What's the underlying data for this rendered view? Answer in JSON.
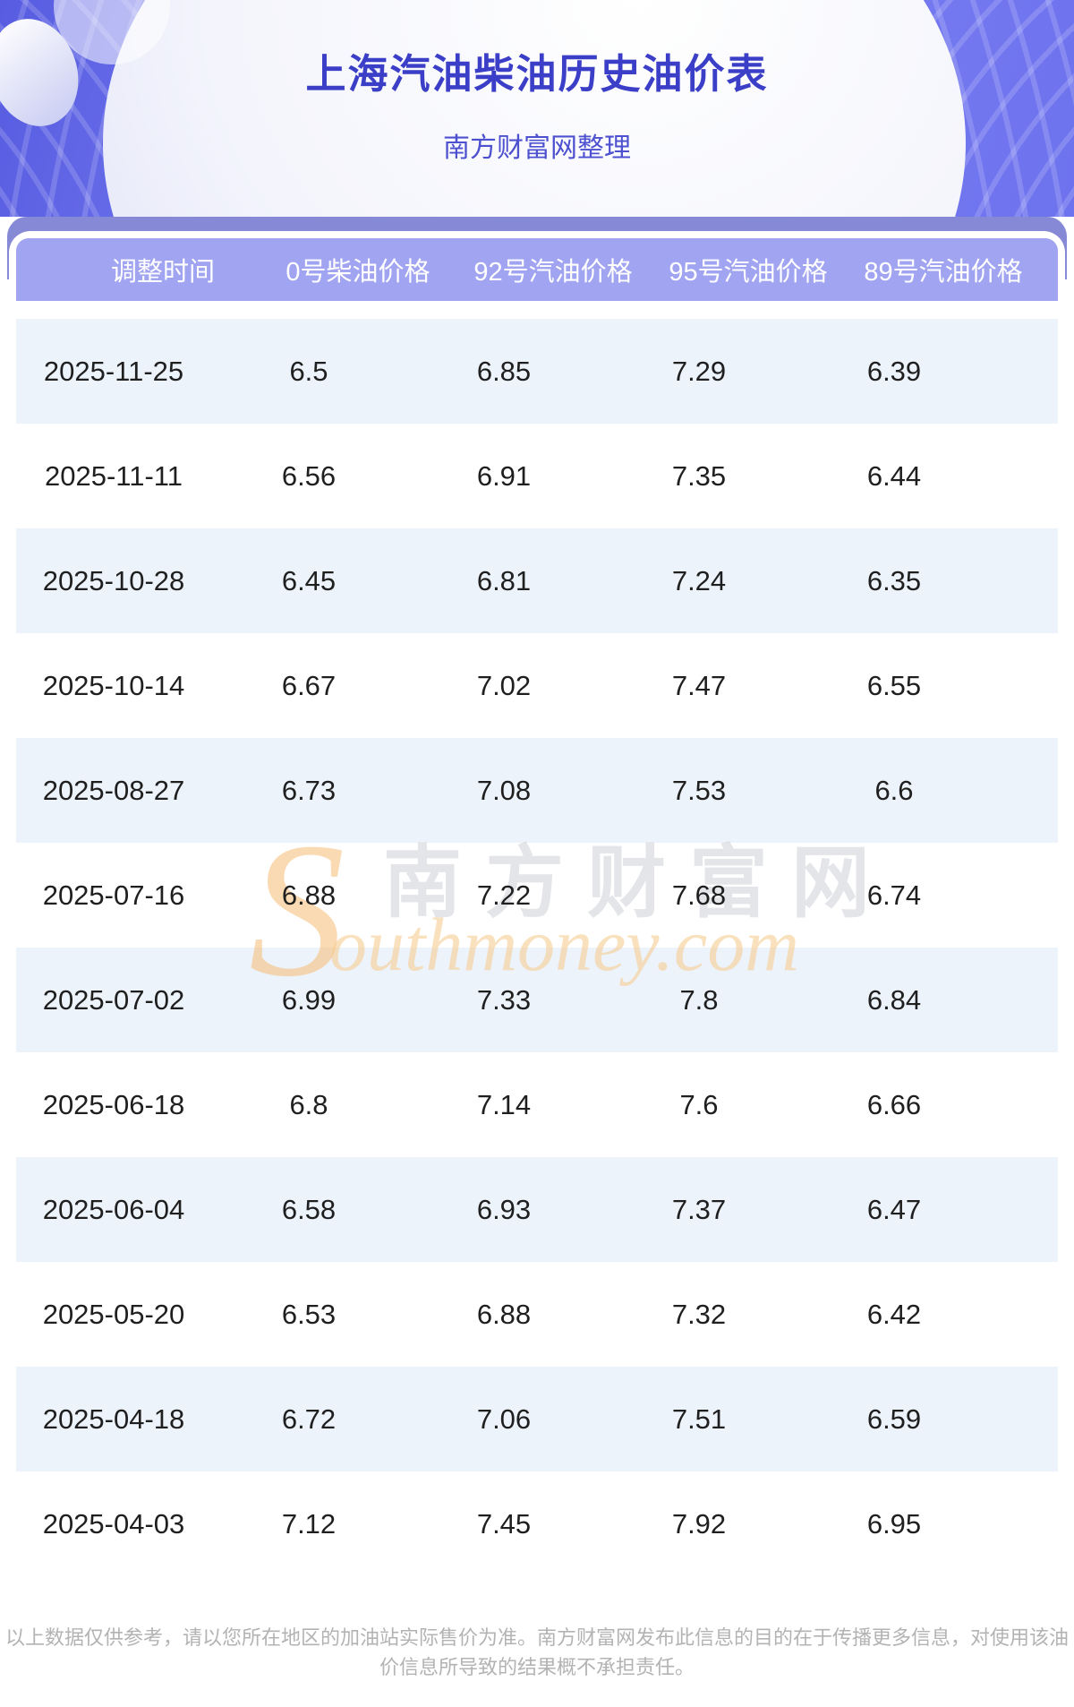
{
  "banner": {
    "title": "上海汽油柴油历史油价表",
    "subtitle": "南方财富网整理"
  },
  "table": {
    "columns": [
      "调整时间",
      "0号柴油价格",
      "92号汽油价格",
      "95号汽油价格",
      "89号汽油价格"
    ],
    "rows": [
      [
        "2025-11-25",
        "6.5",
        "6.85",
        "7.29",
        "6.39"
      ],
      [
        "2025-11-11",
        "6.56",
        "6.91",
        "7.35",
        "6.44"
      ],
      [
        "2025-10-28",
        "6.45",
        "6.81",
        "7.24",
        "6.35"
      ],
      [
        "2025-10-14",
        "6.67",
        "7.02",
        "7.47",
        "6.55"
      ],
      [
        "2025-08-27",
        "6.73",
        "7.08",
        "7.53",
        "6.6"
      ],
      [
        "2025-07-16",
        "6.88",
        "7.22",
        "7.68",
        "6.74"
      ],
      [
        "2025-07-02",
        "6.99",
        "7.33",
        "7.8",
        "6.84"
      ],
      [
        "2025-06-18",
        "6.8",
        "7.14",
        "7.6",
        "6.66"
      ],
      [
        "2025-06-04",
        "6.58",
        "6.93",
        "7.37",
        "6.47"
      ],
      [
        "2025-05-20",
        "6.53",
        "6.88",
        "7.32",
        "6.42"
      ],
      [
        "2025-04-18",
        "6.72",
        "7.06",
        "7.51",
        "6.59"
      ],
      [
        "2025-04-03",
        "7.12",
        "7.45",
        "7.92",
        "6.95"
      ]
    ]
  },
  "watermark": {
    "initial": "S",
    "cjk": "南方财富网",
    "latin": "outhmoney.com"
  },
  "footer": {
    "disclaimer": "以上数据仅供参考，请以您所在地区的加油站实际售价为准。南方财富网发布此信息的目的在于传播更多信息，对使用该油价信息所导致的结果概不承担责任。"
  },
  "colors": {
    "banner_purple": "#6d72ee",
    "band_purple": "#8689d6",
    "header_purple": "#a0a4f1",
    "row_alt_blue": "#edf3fb",
    "title_blue": "#3b3ec6",
    "watermark_orange": "#f6bc72",
    "footer_gray": "#b3b3b3"
  }
}
